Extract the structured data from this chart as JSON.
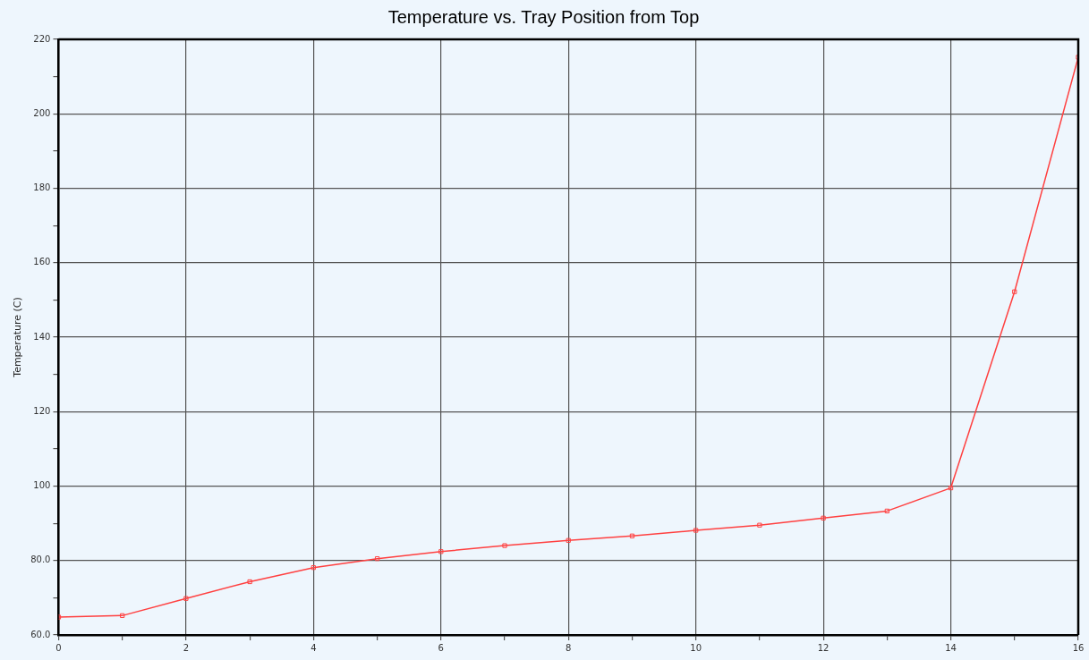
{
  "chart_data": {
    "type": "line",
    "title": "Temperature vs. Tray Position from Top",
    "ylabel": "Temperature (C)",
    "x": [
      0,
      1,
      2,
      3,
      4,
      5,
      6,
      7,
      8,
      9,
      10,
      11,
      12,
      13,
      14,
      15,
      16
    ],
    "series": [
      {
        "color": "#ff4040",
        "values": [
          64.8,
          65.2,
          69.8,
          74.3,
          78.1,
          80.5,
          82.4,
          84.0,
          85.4,
          86.6,
          88.1,
          89.5,
          91.4,
          93.3,
          99.5,
          152.2,
          215.2
        ]
      }
    ],
    "xlim": [
      0,
      16
    ],
    "xticks": [
      0,
      {
        "value": 1,
        "label": null
      },
      2,
      {
        "value": 3,
        "label": null
      },
      4,
      {
        "value": 5,
        "label": null
      },
      6,
      {
        "value": 7,
        "label": null
      },
      8,
      {
        "value": 9,
        "label": null
      },
      10,
      {
        "value": 11,
        "label": null
      },
      12,
      {
        "value": 13,
        "label": null
      },
      14,
      {
        "value": 15,
        "label": null
      },
      16
    ],
    "ylim": [
      60,
      220
    ],
    "yticks": [
      {
        "value": 60,
        "label": "60.0"
      },
      {
        "value": 70,
        "label": null
      },
      {
        "value": 80,
        "label": "80.0"
      },
      {
        "value": 90,
        "label": null
      },
      100,
      {
        "value": 110,
        "label": null
      },
      120,
      {
        "value": 130,
        "label": null
      },
      140,
      {
        "value": 150,
        "label": null
      },
      160,
      {
        "value": 170,
        "label": null
      },
      180,
      {
        "value": 190,
        "label": null
      },
      200,
      {
        "value": 210,
        "label": null
      },
      220
    ],
    "grid": true,
    "legend": false,
    "marker": "square",
    "line_style": "solid"
  }
}
